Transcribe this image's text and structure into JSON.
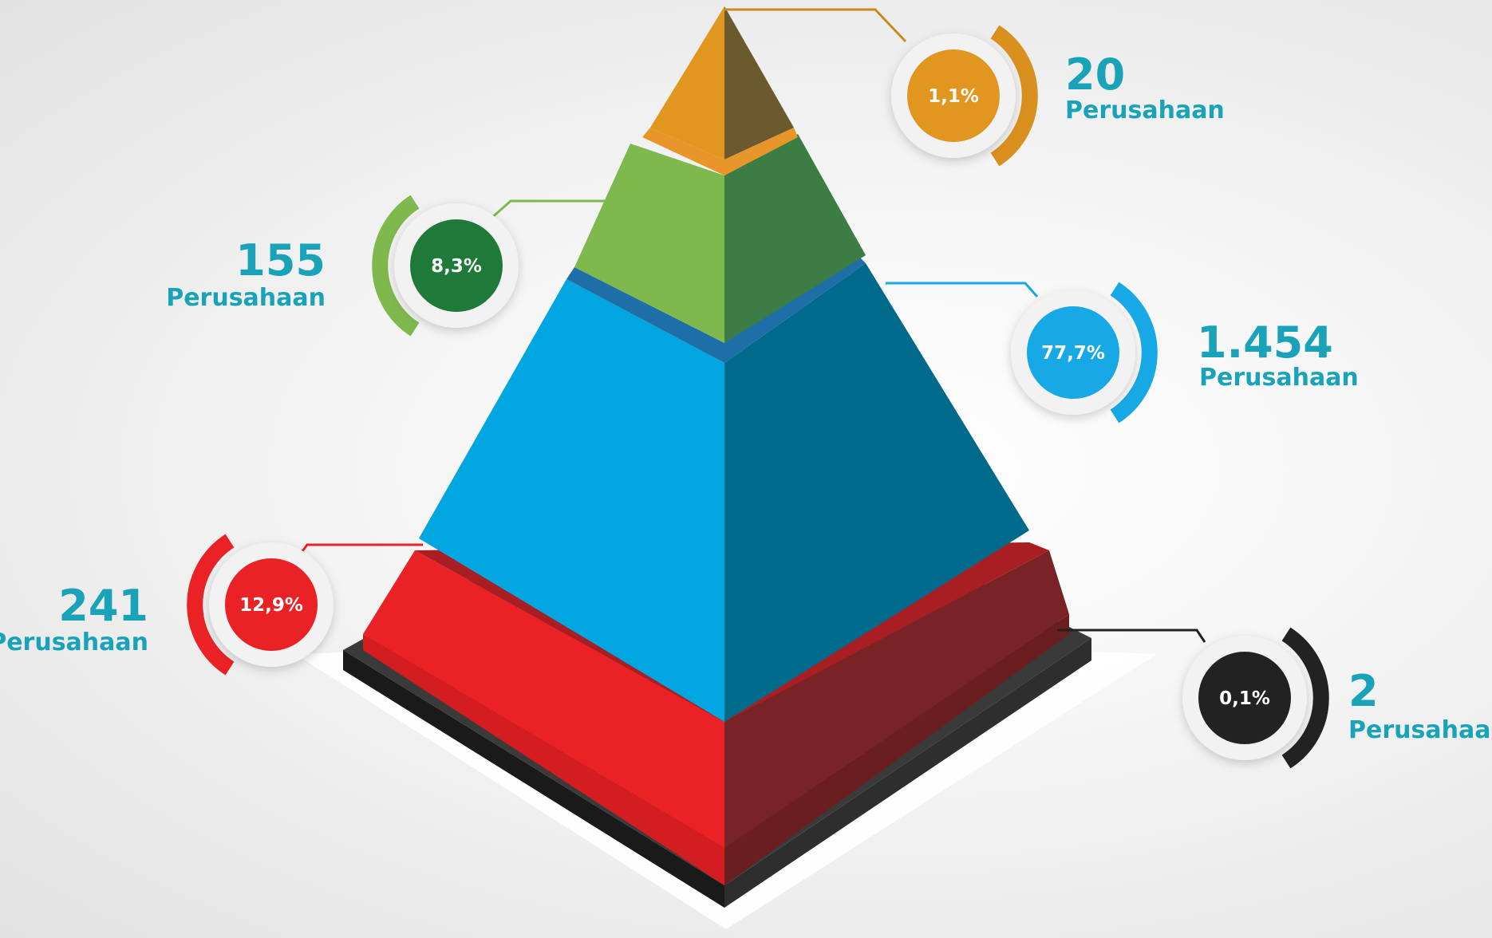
{
  "colors": {
    "label_text": "#1aa3b8",
    "top": "#e0961f",
    "second": "#7fb84c",
    "middle": "#00a6e0",
    "base": "#ea2226",
    "foundation": "#232323"
  },
  "chart_data": {
    "type": "pyramid",
    "unit_label": "Perusahaan",
    "tiers": [
      {
        "key": "top",
        "count": "20",
        "percent": "1,1%",
        "unit": "Perusahaan",
        "color": "#e0961f"
      },
      {
        "key": "second",
        "count": "155",
        "percent": "8,3%",
        "unit": "Perusahaan",
        "color": "#1f7a3a"
      },
      {
        "key": "middle",
        "count": "1.454",
        "percent": "77,7%",
        "unit": "Perusahaan",
        "color": "#17a9e6"
      },
      {
        "key": "base",
        "count": "241",
        "percent": "12,9%",
        "unit": "Perusahaan",
        "color": "#ea2226"
      },
      {
        "key": "foundation",
        "count": "2",
        "percent": "0,1%",
        "unit": "Perusahaan",
        "color": "#222222"
      }
    ]
  }
}
